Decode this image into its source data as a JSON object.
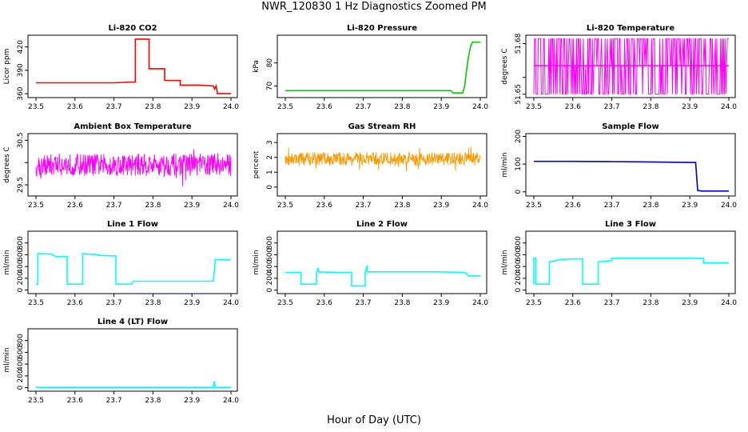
{
  "figure": {
    "title": "NWR_120830  1 Hz Diagnostics Zoomed PM",
    "xlabel": "Hour of Day (UTC)"
  },
  "chart_data": [
    {
      "type": "line",
      "title": "Li-820 CO2",
      "ylabel": "Licor ppm",
      "color": "#ff0000",
      "xlim": [
        23.5,
        24.0
      ],
      "ylim": [
        355,
        435
      ],
      "x_ticks": [
        23.5,
        23.6,
        23.7,
        23.8,
        23.9,
        24.0
      ],
      "y_ticks": [
        360,
        390,
        420
      ],
      "series": [
        {
          "x": [
            23.5,
            23.55,
            23.6,
            23.65,
            23.7,
            23.745,
            23.755,
            23.755,
            23.79,
            23.79,
            23.83,
            23.83,
            23.87,
            23.87,
            23.92,
            23.955,
            23.958,
            23.962,
            23.965,
            23.965,
            24.0
          ],
          "y": [
            374,
            374,
            374,
            374,
            374,
            375,
            375,
            430,
            430,
            392,
            392,
            377,
            377,
            371,
            371,
            370,
            366,
            370,
            362,
            360,
            360
          ]
        }
      ]
    },
    {
      "type": "line",
      "title": "Li-820 Pressure",
      "ylabel": "kPa",
      "color": "#00cc00",
      "xlim": [
        23.5,
        24.0
      ],
      "ylim": [
        65,
        92
      ],
      "x_ticks": [
        23.5,
        23.6,
        23.7,
        23.8,
        23.9,
        24.0
      ],
      "y_ticks": [
        70,
        80
      ],
      "series": [
        {
          "x": [
            23.5,
            23.6,
            23.7,
            23.8,
            23.9,
            23.925,
            23.93,
            23.955,
            23.96,
            23.965,
            23.97,
            23.975,
            23.98,
            24.0
          ],
          "y": [
            68,
            68,
            68,
            68,
            68,
            68,
            67,
            67,
            70,
            77,
            83,
            87,
            89,
            89
          ]
        }
      ]
    },
    {
      "type": "line",
      "title": "Li-820 Temperature",
      "ylabel": "degrees C",
      "color": "#ff00ff",
      "xlim": [
        23.5,
        24.0
      ],
      "ylim": [
        51.648,
        51.685
      ],
      "x_ticks": [
        23.5,
        23.6,
        23.7,
        23.8,
        23.9,
        24.0
      ],
      "y_ticks": [
        51.65,
        51.66,
        51.68
      ],
      "y_tick_labels": [
        "51.65",
        "",
        "51.68"
      ],
      "series": [
        {
          "x": [
            23.5,
            24.0
          ],
          "y": [
            51.65,
            51.683
          ],
          "note_levels": [
            51.65,
            51.667,
            51.683
          ]
        }
      ]
    },
    {
      "type": "line",
      "title": "Ambient Box Temperature",
      "ylabel": "degrees C",
      "color": "#ff00ff",
      "xlim": [
        23.5,
        24.0
      ],
      "ylim": [
        29.25,
        30.65
      ],
      "x_ticks": [
        23.5,
        23.6,
        23.7,
        23.8,
        23.9,
        24.0
      ],
      "y_ticks": [
        29.5,
        30.0,
        30.5
      ],
      "y_tick_labels": [
        "29.5",
        "",
        "30.5"
      ],
      "series": [
        {
          "mean": 29.95,
          "spread": 0.25
        }
      ]
    },
    {
      "type": "line",
      "title": "Gas Stream RH",
      "ylabel": "percent",
      "color": "#ff9900",
      "xlim": [
        23.5,
        24.0
      ],
      "ylim": [
        -0.6,
        3.6
      ],
      "x_ticks": [
        23.5,
        23.6,
        23.7,
        23.8,
        23.9,
        24.0
      ],
      "y_ticks": [
        0,
        1,
        2,
        3
      ],
      "series": [
        {
          "mean": 1.9,
          "spread": 0.45
        }
      ]
    },
    {
      "type": "line",
      "title": "Sample Flow",
      "ylabel": "ml/min",
      "color": "#0000cc",
      "xlim": [
        23.5,
        24.0
      ],
      "ylim": [
        -15,
        210
      ],
      "x_ticks": [
        23.5,
        23.6,
        23.7,
        23.8,
        23.9,
        24.0
      ],
      "y_ticks": [
        0,
        100,
        200
      ],
      "series": [
        {
          "x": [
            23.5,
            23.6,
            23.7,
            23.8,
            23.9,
            23.915,
            23.92,
            23.93,
            24.0
          ],
          "y": [
            110,
            110,
            109,
            108,
            106,
            106,
            5,
            3,
            3
          ]
        }
      ]
    },
    {
      "type": "line",
      "title": "Line 1 Flow",
      "ylabel": "ml/min",
      "color": "#00ffff",
      "xlim": [
        23.5,
        24.0
      ],
      "ylim": [
        -60,
        1000
      ],
      "x_ticks": [
        23.5,
        23.6,
        23.7,
        23.8,
        23.9,
        24.0
      ],
      "y_ticks": [
        0,
        200,
        400,
        600,
        800
      ],
      "series": [
        {
          "x": [
            23.5,
            23.505,
            23.505,
            23.54,
            23.55,
            23.58,
            23.58,
            23.62,
            23.62,
            23.66,
            23.66,
            23.705,
            23.705,
            23.745,
            23.75,
            23.85,
            23.95,
            23.955,
            23.96,
            23.99,
            24.0
          ],
          "y": [
            100,
            100,
            620,
            610,
            570,
            570,
            100,
            100,
            620,
            600,
            590,
            580,
            100,
            100,
            150,
            150,
            150,
            150,
            520,
            510,
            520
          ]
        }
      ]
    },
    {
      "type": "line",
      "title": "Line 2 Flow",
      "ylabel": "ml/min",
      "color": "#00ffff",
      "xlim": [
        23.5,
        24.0
      ],
      "ylim": [
        -60,
        1000
      ],
      "x_ticks": [
        23.5,
        23.6,
        23.7,
        23.8,
        23.9,
        24.0
      ],
      "y_ticks": [
        0,
        200,
        400,
        600,
        800
      ],
      "series": [
        {
          "x": [
            23.5,
            23.54,
            23.54,
            23.58,
            23.58,
            23.585,
            23.585,
            23.64,
            23.64,
            23.67,
            23.67,
            23.705,
            23.705,
            23.71,
            23.71,
            23.8,
            23.9,
            23.96,
            23.97,
            24.0
          ],
          "y": [
            300,
            300,
            100,
            100,
            300,
            380,
            310,
            300,
            300,
            300,
            70,
            70,
            300,
            420,
            310,
            310,
            310,
            300,
            240,
            240
          ]
        }
      ]
    },
    {
      "type": "line",
      "title": "Line 3 Flow",
      "ylabel": "ml/min",
      "color": "#00ffff",
      "xlim": [
        23.5,
        24.0
      ],
      "ylim": [
        -60,
        1000
      ],
      "x_ticks": [
        23.5,
        23.6,
        23.7,
        23.8,
        23.9,
        24.0
      ],
      "y_ticks": [
        0,
        200,
        400,
        600,
        800
      ],
      "series": [
        {
          "x": [
            23.5,
            23.5,
            23.505,
            23.505,
            23.54,
            23.54,
            23.57,
            23.6,
            23.625,
            23.625,
            23.665,
            23.665,
            23.7,
            23.7,
            23.8,
            23.9,
            23.93,
            23.935,
            23.935,
            24.0
          ],
          "y": [
            100,
            540,
            540,
            100,
            100,
            480,
            520,
            530,
            530,
            100,
            100,
            480,
            500,
            540,
            540,
            540,
            540,
            540,
            460,
            460
          ]
        }
      ]
    },
    {
      "type": "line",
      "title": "Line 4 (LT) Flow",
      "ylabel": "ml/min",
      "color": "#00ffff",
      "xlim": [
        23.5,
        24.0
      ],
      "ylim": [
        -60,
        1000
      ],
      "x_ticks": [
        23.5,
        23.6,
        23.7,
        23.8,
        23.9,
        24.0
      ],
      "y_ticks": [
        0,
        200,
        400,
        600,
        800
      ],
      "series": [
        {
          "x": [
            23.5,
            23.6,
            23.7,
            23.8,
            23.9,
            23.955,
            23.957,
            23.96,
            23.96,
            24.0
          ],
          "y": [
            5,
            5,
            5,
            5,
            5,
            5,
            110,
            5,
            5,
            5
          ]
        }
      ]
    }
  ]
}
